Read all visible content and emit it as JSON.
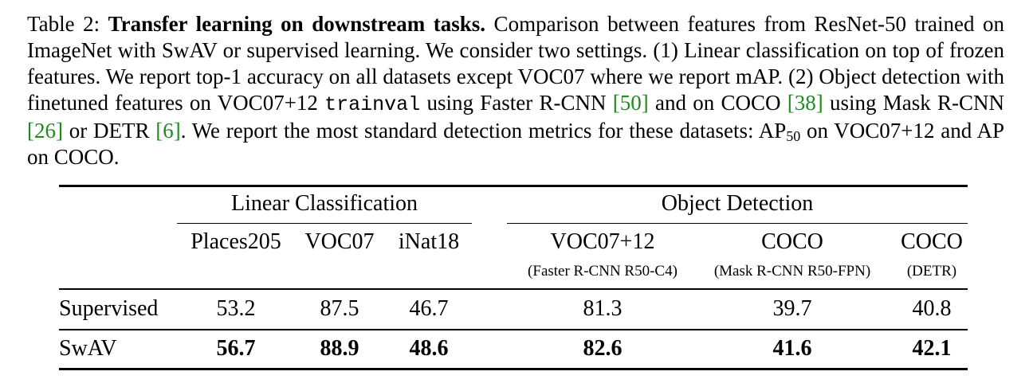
{
  "caption": {
    "label": "Table 2: ",
    "title": "Transfer learning on downstream tasks.",
    "text1": " Comparison between features from ResNet-50 trained on ImageNet with SwAV or supervised learning.  We consider two settings. (1) Linear classification on top of frozen features. We report top-1 accuracy on all datasets except VOC07 where we report mAP. (2) Object detection with finetuned features on VOC07+12 ",
    "mono": "trainval",
    "text2": " using Faster R-CNN ",
    "ref1": "[50]",
    "text3": " and on COCO ",
    "ref2": "[38]",
    "text4": " using Mask R-CNN ",
    "ref3": "[26]",
    "text5": " or DETR ",
    "ref4": "[6]",
    "text6": ". We report the most standard detection metrics for these datasets: AP",
    "subscript": "50",
    "text7": " on VOC07+12 and AP on COCO."
  },
  "table": {
    "group_linear": "Linear Classification",
    "group_detection": "Object Detection",
    "columns": [
      {
        "name": "Places205",
        "sub": ""
      },
      {
        "name": "VOC07",
        "sub": ""
      },
      {
        "name": "iNat18",
        "sub": ""
      },
      {
        "name": "VOC07+12",
        "sub": "(Faster R-CNN R50-C4)"
      },
      {
        "name": "COCO",
        "sub": "(Mask R-CNN R50-FPN)"
      },
      {
        "name": "COCO",
        "sub": "(DETR)"
      }
    ],
    "rows": [
      {
        "label": "Supervised",
        "values": [
          "53.2",
          "87.5",
          "46.7",
          "81.3",
          "39.7",
          "40.8"
        ],
        "bold": false
      },
      {
        "label": "SwAV",
        "values": [
          "56.7",
          "88.9",
          "48.6",
          "82.6",
          "41.6",
          "42.1"
        ],
        "bold": true
      }
    ]
  }
}
